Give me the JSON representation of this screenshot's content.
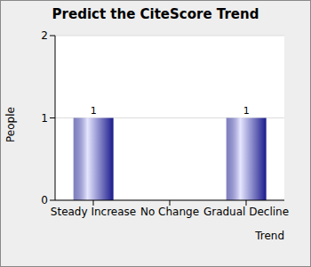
{
  "chart_data": {
    "type": "bar",
    "title": "Predict the CiteScore Trend",
    "x_label": "Trend",
    "y_label": "People",
    "categories": [
      "Steady Increase",
      "No Change",
      "Gradual Decline"
    ],
    "values": [
      1,
      0,
      1
    ],
    "color": "#1a1a8c",
    "ylim": [
      0,
      2
    ],
    "yticks": [
      0,
      1,
      2
    ],
    "grid": true,
    "data_labels": true
  }
}
